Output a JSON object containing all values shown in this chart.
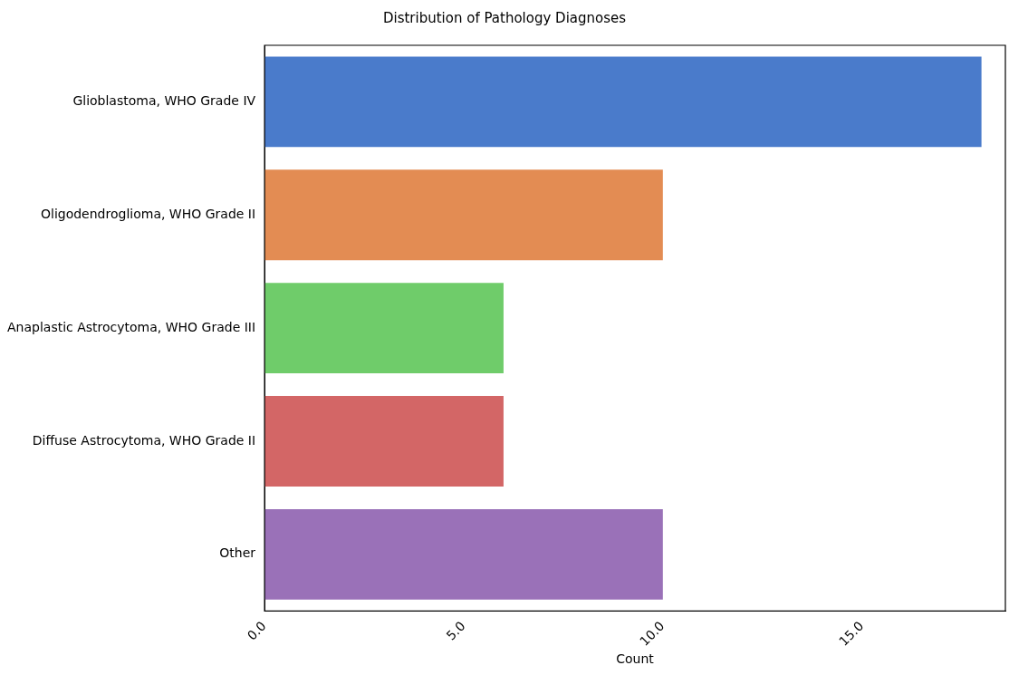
{
  "chart_data": {
    "type": "bar",
    "orientation": "horizontal",
    "title": "Distribution of Pathology Diagnoses",
    "xlabel": "Count",
    "categories": [
      "Glioblastoma, WHO Grade IV",
      "Oligodendroglioma, WHO Grade II",
      "Anaplastic Astrocytoma, WHO Grade III",
      "Diffuse Astrocytoma, WHO Grade II",
      "Other"
    ],
    "values": [
      18,
      10,
      6,
      6,
      10
    ],
    "colors": [
      "#4a7bcb",
      "#e38c53",
      "#6fcc6a",
      "#d36666",
      "#9a71b8"
    ],
    "xlim": [
      0,
      18.6
    ],
    "xticks": [
      {
        "value": 0,
        "label": "0.0"
      },
      {
        "value": 5,
        "label": "5.0"
      },
      {
        "value": 10,
        "label": "10.0"
      },
      {
        "value": 15,
        "label": "15.0"
      }
    ],
    "grid": false,
    "legend": false
  }
}
